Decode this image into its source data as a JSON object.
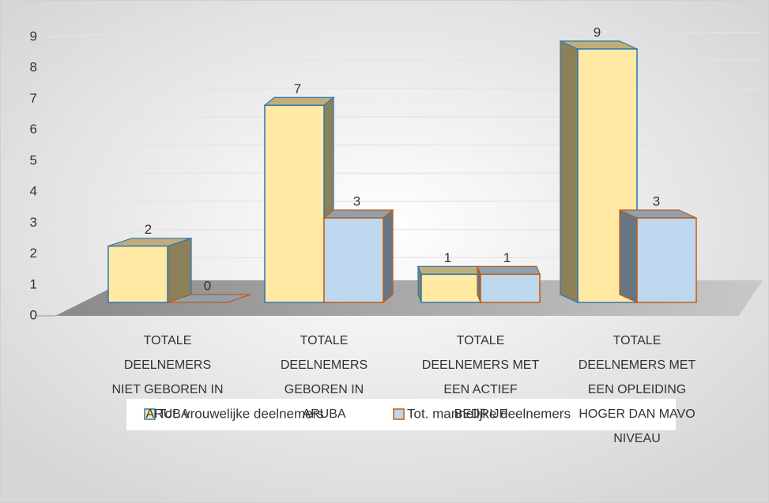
{
  "chart_data": {
    "type": "bar3d",
    "categories": [
      "TOTALE DEELNEMERS NIET GEBOREN IN ARUBA",
      "TOTALE DEELNEMERS GEBOREN IN ARUBA",
      "TOTALE DEELNEMERS MET EEN ACTIEF BEDRIJF",
      "TOTALE DEELNEMERS MET EEN OPLEIDING HOGER DAN MAVO NIVEAU"
    ],
    "series": [
      {
        "name": "Tot. vrouwelijke  deelnemers",
        "color": "#ffe9a3",
        "edge_color": "#2e75b6",
        "values": [
          2,
          7,
          1,
          9
        ]
      },
      {
        "name": "Tot. mannelijke deelnemers",
        "color": "#bdd7ee",
        "edge_color": "#c55a11",
        "values": [
          0,
          3,
          1,
          3
        ]
      }
    ],
    "ylim": [
      0,
      9
    ],
    "yticks": [
      0,
      1,
      2,
      3,
      4,
      5,
      6,
      7,
      8,
      9
    ],
    "grid": true,
    "legend": "bottom"
  }
}
